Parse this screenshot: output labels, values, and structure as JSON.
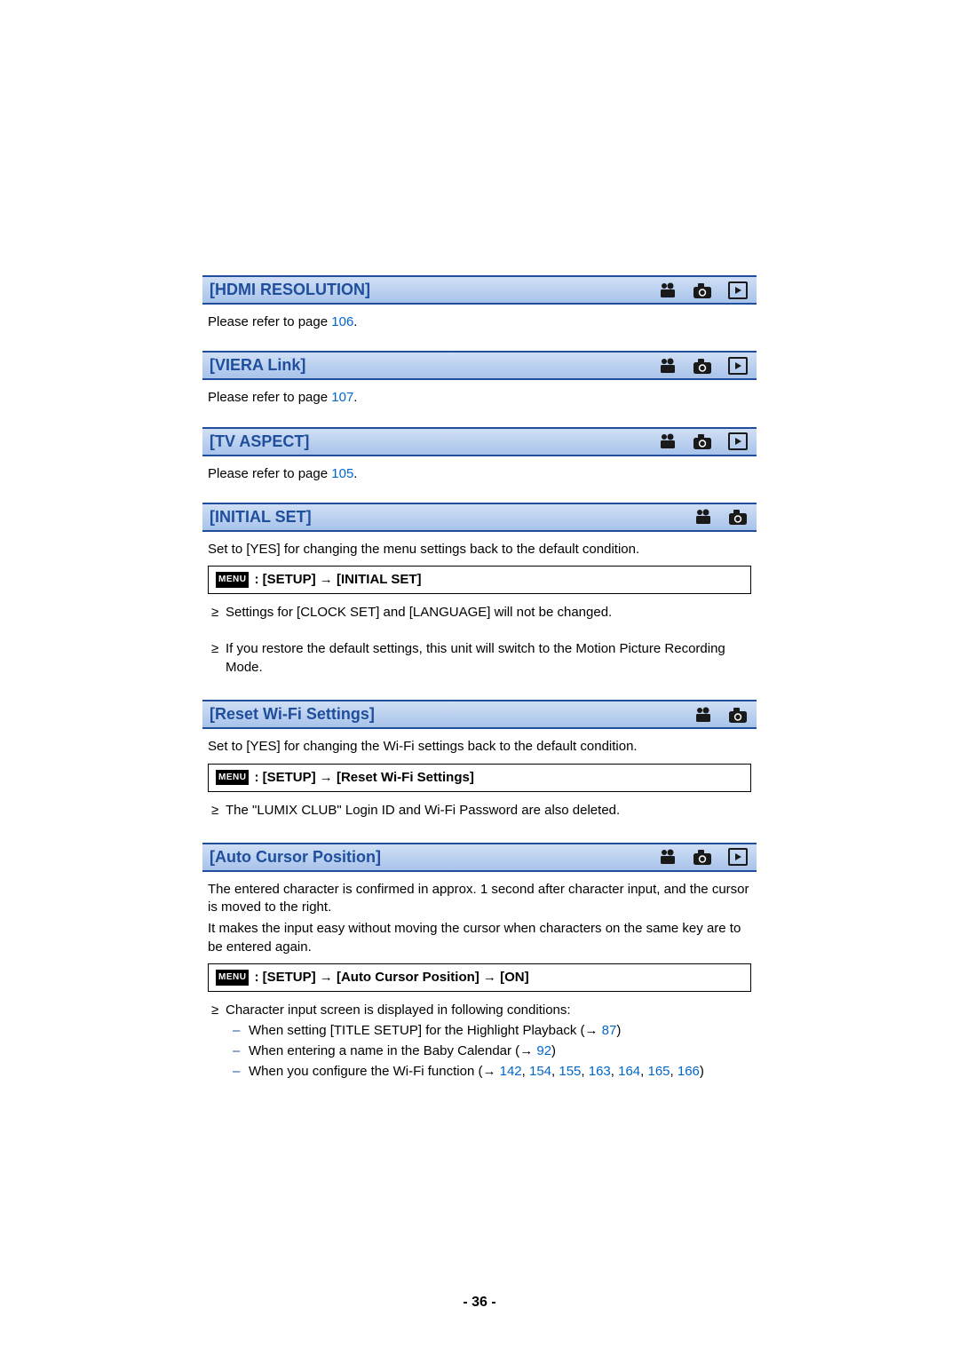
{
  "colors": {
    "header_gradient_top": "#d0dff5",
    "header_gradient_bottom": "#a8c3ea",
    "border_blue": "#1f4e9c",
    "title_blue": "#1f4e9c",
    "link_blue": "#0066cc",
    "menu_badge_bg": "#000000",
    "menu_badge_fg": "#ffffff",
    "icon_color": "#1a1a1a"
  },
  "icons": {
    "video": "video-icon",
    "camera": "camera-icon",
    "play": "play-icon"
  },
  "menu_badge": "MENU",
  "arrow": "→",
  "link_arrow": "→",
  "sections": {
    "hdmi": {
      "title": "[HDMI RESOLUTION]",
      "ref_prefix": "Please refer to page ",
      "ref_page": "106",
      "ref_suffix": ".",
      "show_video": true,
      "show_camera": true,
      "show_play": true
    },
    "viera": {
      "title": "[VIERA Link]",
      "ref_prefix": "Please refer to page ",
      "ref_page": "107",
      "ref_suffix": ".",
      "show_video": true,
      "show_camera": true,
      "show_play": true
    },
    "tvaspect": {
      "title": "[TV ASPECT]",
      "ref_prefix": "Please refer to page ",
      "ref_page": "105",
      "ref_suffix": ".",
      "show_video": true,
      "show_camera": true,
      "show_play": true
    },
    "initial": {
      "title": "[INITIAL SET]",
      "lead": "Set to [YES] for changing the menu settings back to the default condition.",
      "menu_path": ": [SETUP] → [INITIAL SET]",
      "bullet1": "Settings for [CLOCK SET] and [LANGUAGE] will not be changed.",
      "bullet2": "If you restore the default settings, this unit will switch to the Motion Picture Recording Mode.",
      "show_video": true,
      "show_camera": true,
      "show_play": false
    },
    "wifi": {
      "title": "[Reset Wi-Fi Settings]",
      "lead": "Set to [YES] for changing the Wi-Fi settings back to the default condition.",
      "menu_path": ": [SETUP] → [Reset Wi-Fi Settings]",
      "bullet1": "The \"LUMIX CLUB\" Login ID and Wi-Fi Password are also deleted.",
      "show_video": true,
      "show_camera": true,
      "show_play": false
    },
    "cursor": {
      "title": "[Auto Cursor Position]",
      "body1": "The entered character is confirmed in approx. 1 second after character input, and the cursor is moved to the right.",
      "body2": "It makes the input easy without moving the cursor when characters on the same key are to be entered again.",
      "menu_path": ": [SETUP] → [Auto Cursor Position] → [ON]",
      "bullet1_lead": "Character input screen is displayed in following conditions:",
      "dash1_text": "When setting [TITLE SETUP] for the Highlight Playback (",
      "dash1_page": "87",
      "dash2_text": "When entering a name in the Baby Calendar (",
      "dash2_page": "92",
      "dash3_text": "When you configure the Wi-Fi function (",
      "dash3_pages": [
        "142",
        "154",
        "155",
        "163",
        "164",
        "165",
        "166"
      ],
      "close_paren": ")",
      "show_video": true,
      "show_camera": true,
      "show_play": true
    }
  },
  "page_number": "- 36 -"
}
